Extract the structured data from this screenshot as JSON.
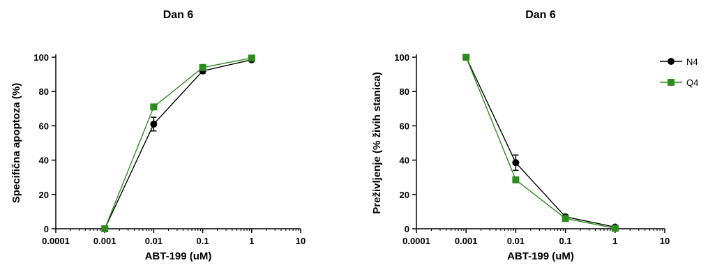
{
  "colors": {
    "N4": "#000000",
    "Q4": "#2e8b1e"
  },
  "chart_data": [
    {
      "type": "line",
      "title": "Dan 6",
      "xlabel": "ABT-199 (uM)",
      "ylabel": "Specifična apoptoza (%)",
      "xscale": "log",
      "xlim": [
        0.0001,
        10
      ],
      "ylim": [
        0,
        100
      ],
      "xticks": [
        0.0001,
        0.001,
        0.01,
        0.1,
        1,
        10
      ],
      "xtick_labels": [
        "0.0001",
        "0.001",
        "0.01",
        "0.1",
        "1",
        "10"
      ],
      "yticks": [
        0,
        20,
        40,
        60,
        80,
        100
      ],
      "ytick_labels": [
        "0",
        "20",
        "40",
        "60",
        "80",
        "100"
      ],
      "legend": false,
      "x": [
        0.001,
        0.01,
        0.1,
        1
      ],
      "series": [
        {
          "name": "N4",
          "marker": "circle",
          "color": "#000000",
          "values": [
            0,
            61,
            92,
            98.5
          ],
          "error": [
            0,
            4,
            1.5,
            1
          ]
        },
        {
          "name": "Q4",
          "marker": "square",
          "color": "#2e8b1e",
          "values": [
            0,
            71,
            94,
            99.5
          ],
          "error": [
            0,
            0,
            0,
            0
          ]
        }
      ]
    },
    {
      "type": "line",
      "title": "Dan 6",
      "xlabel": "ABT-199 (uM)",
      "ylabel": "Preživljenje (% živih stanica)",
      "xscale": "log",
      "xlim": [
        0.0001,
        10
      ],
      "ylim": [
        0,
        100
      ],
      "xticks": [
        0.0001,
        0.001,
        0.01,
        0.1,
        1,
        10
      ],
      "xtick_labels": [
        "0.0001",
        "0.001",
        "0.01",
        "0.1",
        "1",
        "10"
      ],
      "yticks": [
        0,
        20,
        40,
        60,
        80,
        100
      ],
      "ytick_labels": [
        "0",
        "20",
        "40",
        "60",
        "80",
        "100"
      ],
      "legend": true,
      "legend_position": "top-right",
      "x": [
        0.001,
        0.01,
        0.1,
        1
      ],
      "series": [
        {
          "name": "N4",
          "marker": "circle",
          "color": "#000000",
          "values": [
            100,
            38.5,
            7,
            1
          ],
          "error": [
            0,
            4.5,
            1,
            0.8
          ]
        },
        {
          "name": "Q4",
          "marker": "square",
          "color": "#2e8b1e",
          "values": [
            100,
            28.5,
            6,
            0.3
          ],
          "error": [
            0,
            0,
            0,
            0
          ]
        }
      ]
    }
  ]
}
